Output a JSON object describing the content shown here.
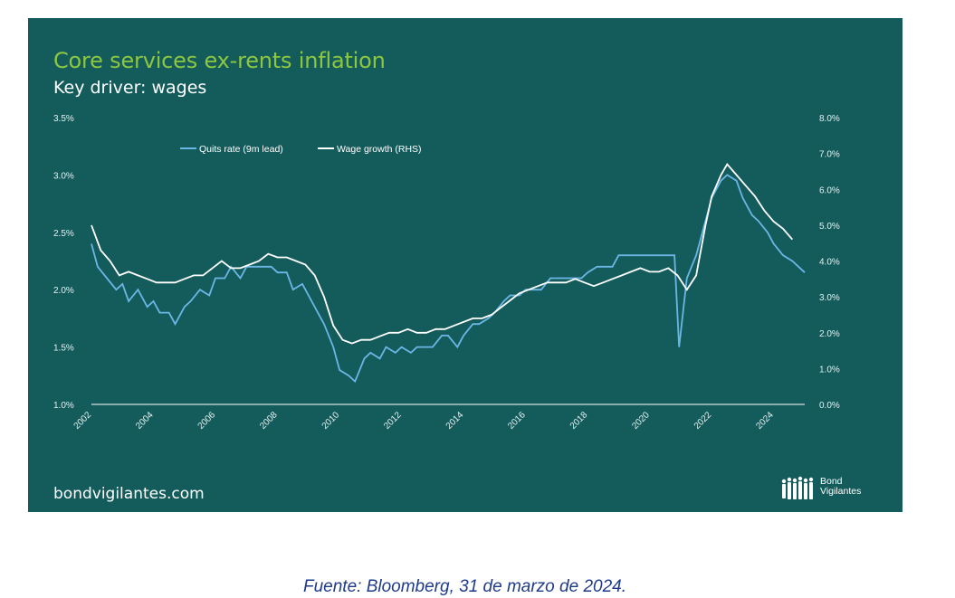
{
  "slide": {
    "title": "Core services ex-rents inflation",
    "subtitle": "Key driver: wages",
    "website": "bondvigilantes.com",
    "logo": {
      "line1": "Bond",
      "line2": "Vigilantes",
      "icon": "people-silhouettes-icon"
    }
  },
  "caption": "Fuente: Bloomberg, 31 de marzo de 2024.",
  "colors": {
    "background": "#145c5c",
    "title": "#8dc63f",
    "quits": "#6cb6e6",
    "wages": "#ffffff",
    "caption": "#1f3a8a"
  },
  "chart_data": {
    "type": "line",
    "title": "Core services ex-rents inflation",
    "subtitle": "Key driver: wages",
    "x_ticks": [
      "2002",
      "2004",
      "2006",
      "2008",
      "2010",
      "2012",
      "2014",
      "2016",
      "2018",
      "2020",
      "2022",
      "2024"
    ],
    "x_range": [
      2002,
      2025
    ],
    "y_left": {
      "ticks": [
        "1.0%",
        "1.5%",
        "2.0%",
        "2.5%",
        "3.0%",
        "3.5%"
      ],
      "range": [
        1.0,
        3.5
      ]
    },
    "y_right": {
      "ticks": [
        "0.0%",
        "1.0%",
        "2.0%",
        "3.0%",
        "4.0%",
        "5.0%",
        "6.0%",
        "7.0%",
        "8.0%"
      ],
      "range": [
        0.0,
        8.0
      ]
    },
    "series": [
      {
        "name": "Quits rate (9m lead)",
        "axis": "left",
        "color": "#6cb6e6",
        "points": [
          [
            2002.0,
            2.4
          ],
          [
            2002.2,
            2.2
          ],
          [
            2002.5,
            2.1
          ],
          [
            2002.8,
            2.0
          ],
          [
            2003.0,
            2.05
          ],
          [
            2003.2,
            1.9
          ],
          [
            2003.5,
            2.0
          ],
          [
            2003.8,
            1.85
          ],
          [
            2004.0,
            1.9
          ],
          [
            2004.2,
            1.8
          ],
          [
            2004.5,
            1.8
          ],
          [
            2004.7,
            1.7
          ],
          [
            2005.0,
            1.85
          ],
          [
            2005.2,
            1.9
          ],
          [
            2005.5,
            2.0
          ],
          [
            2005.8,
            1.95
          ],
          [
            2006.0,
            2.1
          ],
          [
            2006.3,
            2.1
          ],
          [
            2006.5,
            2.2
          ],
          [
            2006.8,
            2.1
          ],
          [
            2007.0,
            2.2
          ],
          [
            2007.3,
            2.2
          ],
          [
            2007.5,
            2.2
          ],
          [
            2007.8,
            2.2
          ],
          [
            2008.0,
            2.15
          ],
          [
            2008.3,
            2.15
          ],
          [
            2008.5,
            2.0
          ],
          [
            2008.8,
            2.05
          ],
          [
            2009.0,
            1.95
          ],
          [
            2009.3,
            1.8
          ],
          [
            2009.5,
            1.7
          ],
          [
            2009.8,
            1.5
          ],
          [
            2010.0,
            1.3
          ],
          [
            2010.3,
            1.25
          ],
          [
            2010.5,
            1.2
          ],
          [
            2010.8,
            1.4
          ],
          [
            2011.0,
            1.45
          ],
          [
            2011.3,
            1.4
          ],
          [
            2011.5,
            1.5
          ],
          [
            2011.8,
            1.45
          ],
          [
            2012.0,
            1.5
          ],
          [
            2012.3,
            1.45
          ],
          [
            2012.5,
            1.5
          ],
          [
            2012.8,
            1.5
          ],
          [
            2013.0,
            1.5
          ],
          [
            2013.3,
            1.6
          ],
          [
            2013.5,
            1.6
          ],
          [
            2013.8,
            1.5
          ],
          [
            2014.0,
            1.6
          ],
          [
            2014.3,
            1.7
          ],
          [
            2014.5,
            1.7
          ],
          [
            2014.8,
            1.75
          ],
          [
            2015.0,
            1.8
          ],
          [
            2015.3,
            1.9
          ],
          [
            2015.5,
            1.95
          ],
          [
            2015.8,
            1.95
          ],
          [
            2016.0,
            2.0
          ],
          [
            2016.3,
            2.0
          ],
          [
            2016.5,
            2.0
          ],
          [
            2016.8,
            2.1
          ],
          [
            2017.0,
            2.1
          ],
          [
            2017.3,
            2.1
          ],
          [
            2017.5,
            2.1
          ],
          [
            2017.8,
            2.1
          ],
          [
            2018.0,
            2.15
          ],
          [
            2018.3,
            2.2
          ],
          [
            2018.5,
            2.2
          ],
          [
            2018.8,
            2.2
          ],
          [
            2019.0,
            2.3
          ],
          [
            2019.3,
            2.3
          ],
          [
            2019.5,
            2.3
          ],
          [
            2019.8,
            2.3
          ],
          [
            2020.0,
            2.3
          ],
          [
            2020.3,
            2.3
          ],
          [
            2020.5,
            2.3
          ],
          [
            2020.8,
            2.3
          ],
          [
            2020.95,
            1.5
          ],
          [
            2021.2,
            2.1
          ],
          [
            2021.5,
            2.3
          ],
          [
            2021.8,
            2.6
          ],
          [
            2022.0,
            2.8
          ],
          [
            2022.3,
            2.95
          ],
          [
            2022.5,
            3.0
          ],
          [
            2022.8,
            2.95
          ],
          [
            2023.0,
            2.8
          ],
          [
            2023.3,
            2.65
          ],
          [
            2023.5,
            2.6
          ],
          [
            2023.8,
            2.5
          ],
          [
            2024.0,
            2.4
          ],
          [
            2024.3,
            2.3
          ],
          [
            2024.6,
            2.25
          ],
          [
            2024.8,
            2.2
          ],
          [
            2025.0,
            2.15
          ]
        ]
      },
      {
        "name": "Wage growth (RHS)",
        "axis": "right",
        "color": "#ffffff",
        "points": [
          [
            2002.0,
            5.0
          ],
          [
            2002.3,
            4.3
          ],
          [
            2002.6,
            4.0
          ],
          [
            2002.9,
            3.6
          ],
          [
            2003.2,
            3.7
          ],
          [
            2003.5,
            3.6
          ],
          [
            2003.8,
            3.5
          ],
          [
            2004.1,
            3.4
          ],
          [
            2004.4,
            3.4
          ],
          [
            2004.7,
            3.4
          ],
          [
            2005.0,
            3.5
          ],
          [
            2005.3,
            3.6
          ],
          [
            2005.6,
            3.6
          ],
          [
            2005.9,
            3.8
          ],
          [
            2006.2,
            4.0
          ],
          [
            2006.5,
            3.8
          ],
          [
            2006.8,
            3.8
          ],
          [
            2007.1,
            3.9
          ],
          [
            2007.4,
            4.0
          ],
          [
            2007.7,
            4.2
          ],
          [
            2008.0,
            4.1
          ],
          [
            2008.3,
            4.1
          ],
          [
            2008.6,
            4.0
          ],
          [
            2008.9,
            3.9
          ],
          [
            2009.2,
            3.6
          ],
          [
            2009.5,
            3.0
          ],
          [
            2009.8,
            2.2
          ],
          [
            2010.1,
            1.8
          ],
          [
            2010.4,
            1.7
          ],
          [
            2010.7,
            1.8
          ],
          [
            2011.0,
            1.8
          ],
          [
            2011.3,
            1.9
          ],
          [
            2011.6,
            2.0
          ],
          [
            2011.9,
            2.0
          ],
          [
            2012.2,
            2.1
          ],
          [
            2012.5,
            2.0
          ],
          [
            2012.8,
            2.0
          ],
          [
            2013.1,
            2.1
          ],
          [
            2013.4,
            2.1
          ],
          [
            2013.7,
            2.2
          ],
          [
            2014.0,
            2.3
          ],
          [
            2014.3,
            2.4
          ],
          [
            2014.6,
            2.4
          ],
          [
            2014.9,
            2.5
          ],
          [
            2015.2,
            2.7
          ],
          [
            2015.5,
            2.9
          ],
          [
            2015.8,
            3.1
          ],
          [
            2016.1,
            3.2
          ],
          [
            2016.4,
            3.3
          ],
          [
            2016.7,
            3.4
          ],
          [
            2017.0,
            3.4
          ],
          [
            2017.3,
            3.4
          ],
          [
            2017.6,
            3.5
          ],
          [
            2017.9,
            3.4
          ],
          [
            2018.2,
            3.3
          ],
          [
            2018.5,
            3.4
          ],
          [
            2018.8,
            3.5
          ],
          [
            2019.1,
            3.6
          ],
          [
            2019.4,
            3.7
          ],
          [
            2019.7,
            3.8
          ],
          [
            2020.0,
            3.7
          ],
          [
            2020.3,
            3.7
          ],
          [
            2020.6,
            3.8
          ],
          [
            2020.9,
            3.6
          ],
          [
            2021.2,
            3.2
          ],
          [
            2021.5,
            3.6
          ],
          [
            2021.8,
            5.0
          ],
          [
            2022.0,
            5.8
          ],
          [
            2022.3,
            6.4
          ],
          [
            2022.5,
            6.7
          ],
          [
            2022.8,
            6.4
          ],
          [
            2023.1,
            6.1
          ],
          [
            2023.4,
            5.8
          ],
          [
            2023.7,
            5.4
          ],
          [
            2024.0,
            5.1
          ],
          [
            2024.3,
            4.9
          ],
          [
            2024.6,
            4.6
          ]
        ]
      }
    ],
    "legend": "top-left, horizontal"
  }
}
